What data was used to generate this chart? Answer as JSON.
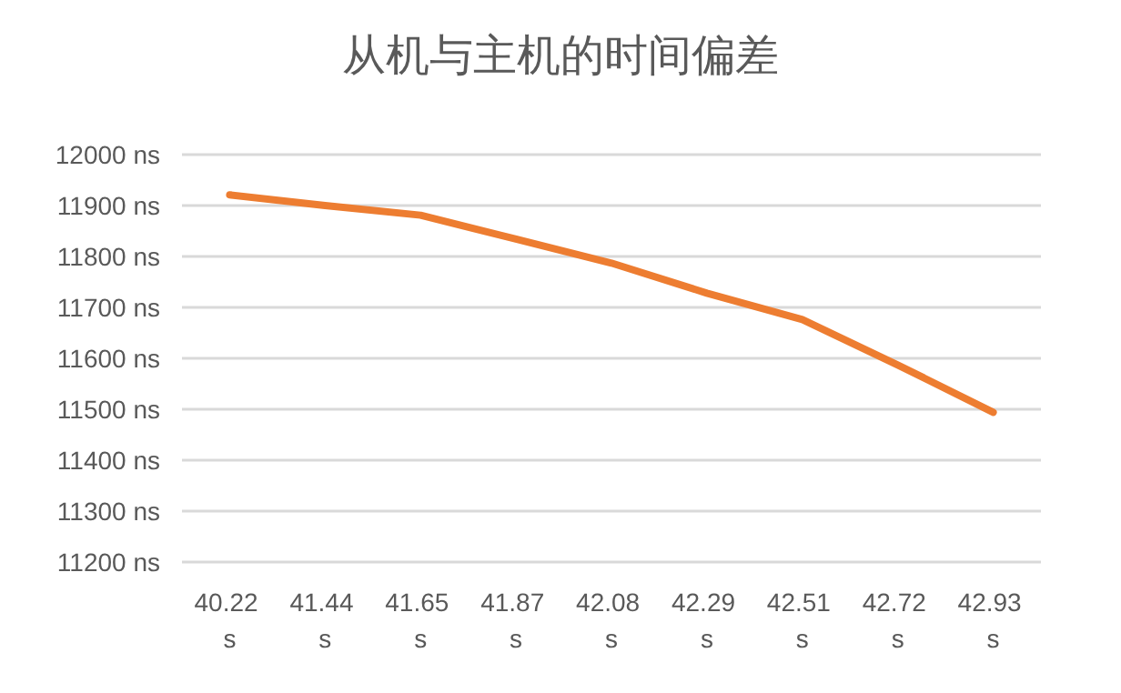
{
  "chart_data": {
    "type": "line",
    "title": "从机与主机的时间偏差",
    "categories": [
      "40.22 s",
      "41.44 s",
      "41.65 s",
      "41.87 s",
      "42.08 s",
      "42.29 s",
      "42.51 s",
      "42.72 s",
      "42.93 s"
    ],
    "series": [
      {
        "color": "#ed7d31",
        "values": [
          11921,
          11900,
          11881,
          11834,
          11787,
          11728,
          11676,
          11587,
          11494
        ]
      }
    ],
    "ylim": [
      11200,
      12000
    ],
    "yticks": [
      {
        "value": 11200,
        "label": "11200 ns"
      },
      {
        "value": 11300,
        "label": "11300 ns"
      },
      {
        "value": 11400,
        "label": "11400 ns"
      },
      {
        "value": 11500,
        "label": "11500 ns"
      },
      {
        "value": 11600,
        "label": "11600 ns"
      },
      {
        "value": 11700,
        "label": "11700 ns"
      },
      {
        "value": 11800,
        "label": "11800 ns"
      },
      {
        "value": 11900,
        "label": "11900 ns"
      },
      {
        "value": 12000,
        "label": "12000 ns"
      }
    ],
    "grid": "y",
    "marker": "none",
    "line_style": "solid"
  }
}
